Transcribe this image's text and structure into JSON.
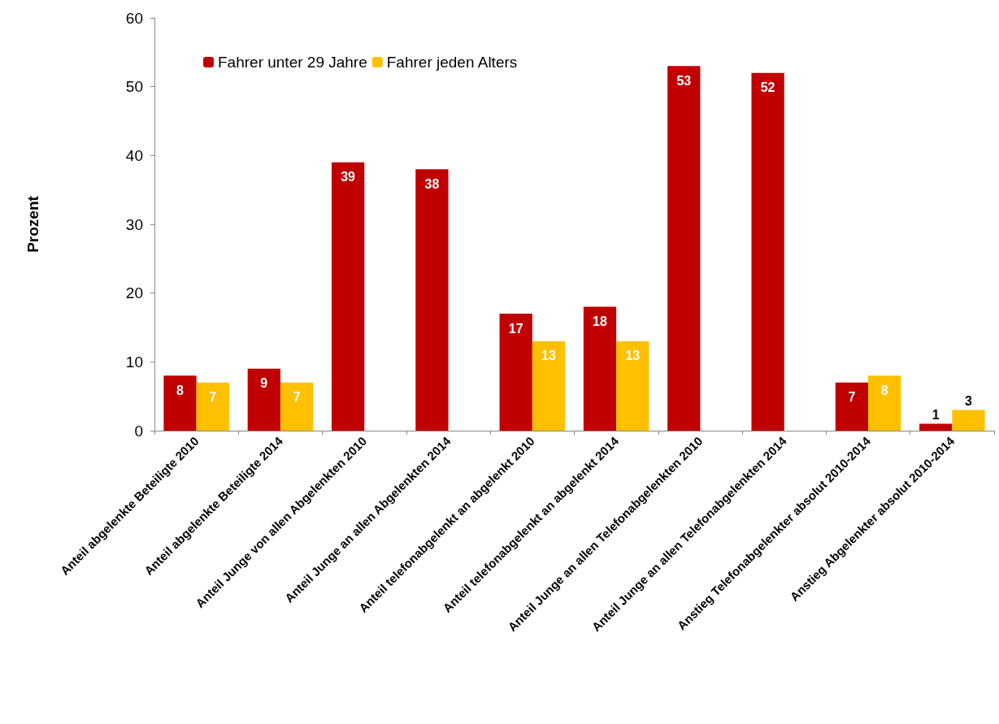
{
  "chart_data": {
    "type": "bar",
    "ylabel": "Prozent",
    "categories": [
      "Anteil abgelenkte Beteiligte 2010",
      "Anteil abgelenkte Beteiligte 2014",
      "Anteil Junge von allen Abgelenkten 2010",
      "Anteil Junge an allen Abgelenkten 2014",
      "Anteil telefonabgelenkt an abgelenkt 2010",
      "Anteil telefonabgelenkt an abgelenkt 2014",
      "Anteil Junge an allen Telefonabgelenkten 2010",
      "Anteil Junge an allen Telefonabgelenkten 2014",
      "Anstieg Telefonabgelenkter absolut 2010-2014",
      "Anstieg Abgelenkter absolut 2010-2014"
    ],
    "series": [
      {
        "name": "Fahrer unter 29 Jahre",
        "color": "#c00000",
        "values": [
          8,
          9,
          39,
          38,
          17,
          18,
          53,
          52,
          7,
          1
        ]
      },
      {
        "name": "Fahrer jeden Alters",
        "color": "#ffc000",
        "values": [
          7,
          7,
          null,
          null,
          13,
          13,
          null,
          null,
          8,
          3
        ]
      }
    ],
    "ylim": [
      0,
      60
    ],
    "yticks": [
      0,
      10,
      20,
      30,
      40,
      50,
      60
    ],
    "grid": false,
    "legend": "top left",
    "data_labels": true
  }
}
